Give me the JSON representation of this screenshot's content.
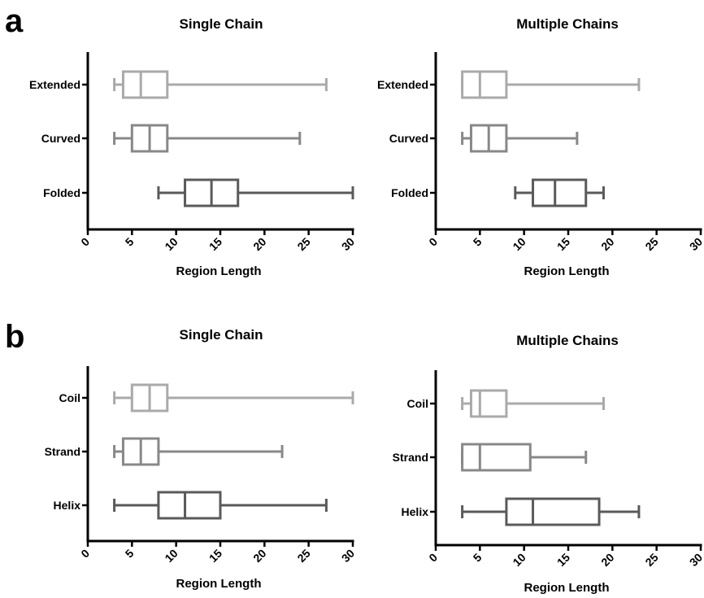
{
  "panels": [
    {
      "letter": "a"
    },
    {
      "letter": "b"
    }
  ],
  "chart_data": [
    {
      "type": "box",
      "panel": "a",
      "title": "Single Chain",
      "xlabel": "Region Length",
      "ylabel": "",
      "xlim": [
        0,
        30
      ],
      "xticks": [
        "0",
        "5",
        "10",
        "15",
        "20",
        "25",
        "30"
      ],
      "categories": [
        "Extended",
        "Curved",
        "Folded"
      ],
      "colors": [
        "#aaaaaa",
        "#888888",
        "#5a5a5a"
      ],
      "boxes": [
        {
          "label": "Extended",
          "min": 3,
          "q1": 4,
          "median": 6,
          "q3": 9,
          "max": 27
        },
        {
          "label": "Curved",
          "min": 3,
          "q1": 5,
          "median": 7,
          "q3": 9,
          "max": 24
        },
        {
          "label": "Folded",
          "min": 8,
          "q1": 11,
          "median": 14,
          "q3": 17,
          "max": 30
        }
      ]
    },
    {
      "type": "box",
      "panel": "a",
      "title": "Multiple Chains",
      "xlabel": "Region Length",
      "ylabel": "",
      "xlim": [
        0,
        30
      ],
      "xticks": [
        "0",
        "5",
        "10",
        "15",
        "20",
        "25",
        "30"
      ],
      "categories": [
        "Extended",
        "Curved",
        "Folded"
      ],
      "colors": [
        "#aaaaaa",
        "#888888",
        "#5a5a5a"
      ],
      "boxes": [
        {
          "label": "Extended",
          "min": 3,
          "q1": 3,
          "median": 5,
          "q3": 8,
          "max": 23
        },
        {
          "label": "Curved",
          "min": 3,
          "q1": 4,
          "median": 6,
          "q3": 8,
          "max": 16
        },
        {
          "label": "Folded",
          "min": 9,
          "q1": 11,
          "median": 13.5,
          "q3": 17,
          "max": 19
        }
      ]
    },
    {
      "type": "box",
      "panel": "b",
      "title": "Single Chain",
      "xlabel": "Region Length",
      "ylabel": "",
      "xlim": [
        0,
        30
      ],
      "xticks": [
        "0",
        "5",
        "10",
        "15",
        "20",
        "25",
        "30"
      ],
      "categories": [
        "Coil",
        "Strand",
        "Helix"
      ],
      "colors": [
        "#aaaaaa",
        "#888888",
        "#5a5a5a"
      ],
      "boxes": [
        {
          "label": "Coil",
          "min": 3,
          "q1": 5,
          "median": 7,
          "q3": 9,
          "max": 30
        },
        {
          "label": "Strand",
          "min": 3,
          "q1": 4,
          "median": 6,
          "q3": 8,
          "max": 22
        },
        {
          "label": "Helix",
          "min": 3,
          "q1": 8,
          "median": 11,
          "q3": 15,
          "max": 27
        }
      ]
    },
    {
      "type": "box",
      "panel": "b",
      "title": "Multiple Chains",
      "xlabel": "Region Length",
      "ylabel": "",
      "xlim": [
        0,
        30
      ],
      "xticks": [
        "0",
        "5",
        "10",
        "15",
        "20",
        "25",
        "30"
      ],
      "categories": [
        "Coil",
        "Strand",
        "Helix"
      ],
      "colors": [
        "#aaaaaa",
        "#888888",
        "#5a5a5a"
      ],
      "boxes": [
        {
          "label": "Coil",
          "min": 3,
          "q1": 4,
          "median": 5,
          "q3": 8,
          "max": 19
        },
        {
          "label": "Strand",
          "min": 3,
          "q1": 3,
          "median": 5,
          "q3": 10.7,
          "max": 17
        },
        {
          "label": "Helix",
          "min": 3,
          "q1": 8,
          "median": 11,
          "q3": 18.5,
          "max": 23
        }
      ]
    }
  ]
}
